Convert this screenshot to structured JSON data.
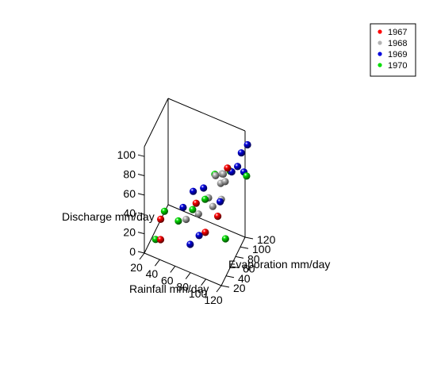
{
  "chart_data": {
    "type": "scatter3d",
    "xlabel": "Rainfall mm/day",
    "ylabel": "Evaporation mm/day",
    "zlabel": "Discharge mm/day",
    "x_ticks": [
      "20",
      "40",
      "60",
      "80",
      "100",
      "120"
    ],
    "y_ticks": [
      "20",
      "40",
      "60",
      "80",
      "100",
      "120"
    ],
    "z_ticks": [
      "0",
      "20",
      "40",
      "60",
      "80",
      "100"
    ],
    "xlim": [
      20,
      120
    ],
    "ylim": [
      20,
      120
    ],
    "zlim": [
      0,
      110
    ],
    "legend_position": "top-right",
    "series": [
      {
        "name": "1967",
        "color": "#ff0000",
        "points": [
          {
            "x": 38,
            "y": 30,
            "z": 15
          },
          {
            "x": 35,
            "y": 40,
            "z": 30
          },
          {
            "x": 90,
            "y": 50,
            "z": 30
          },
          {
            "x": 100,
            "y": 70,
            "z": 40
          },
          {
            "x": 75,
            "y": 60,
            "z": 50
          },
          {
            "x": 108,
            "y": 85,
            "z": 85
          }
        ]
      },
      {
        "name": "1968",
        "color": "#b3b3b3",
        "points": [
          {
            "x": 65,
            "y": 50,
            "z": 35
          },
          {
            "x": 78,
            "y": 60,
            "z": 40
          },
          {
            "x": 92,
            "y": 75,
            "z": 45
          },
          {
            "x": 100,
            "y": 85,
            "z": 50
          },
          {
            "x": 88,
            "y": 70,
            "z": 55
          },
          {
            "x": 94,
            "y": 80,
            "z": 75
          },
          {
            "x": 104,
            "y": 80,
            "z": 80
          },
          {
            "x": 100,
            "y": 88,
            "z": 75
          },
          {
            "x": 105,
            "y": 85,
            "z": 70
          },
          {
            "x": 97,
            "y": 92,
            "z": 62
          }
        ]
      },
      {
        "name": "1969",
        "color": "#0000dd",
        "points": [
          {
            "x": 75,
            "y": 35,
            "z": 20
          },
          {
            "x": 85,
            "y": 40,
            "z": 30
          },
          {
            "x": 58,
            "y": 60,
            "z": 40
          },
          {
            "x": 68,
            "y": 70,
            "z": 55
          },
          {
            "x": 80,
            "y": 75,
            "z": 60
          },
          {
            "x": 100,
            "y": 80,
            "z": 50
          },
          {
            "x": 112,
            "y": 90,
            "z": 80
          },
          {
            "x": 118,
            "y": 95,
            "z": 85
          },
          {
            "x": 120,
            "y": 115,
            "z": 70
          },
          {
            "x": 125,
            "y": 88,
            "z": 105
          },
          {
            "x": 130,
            "y": 98,
            "z": 110
          }
        ]
      },
      {
        "name": "1970",
        "color": "#00dd00",
        "points": [
          {
            "x": 30,
            "y": 35,
            "z": 10
          },
          {
            "x": 40,
            "y": 40,
            "z": 40
          },
          {
            "x": 55,
            "y": 50,
            "z": 30
          },
          {
            "x": 72,
            "y": 55,
            "z": 45
          },
          {
            "x": 85,
            "y": 65,
            "z": 55
          },
          {
            "x": 90,
            "y": 90,
            "z": 70
          },
          {
            "x": 110,
            "y": 70,
            "z": 20
          },
          {
            "x": 125,
            "y": 110,
            "z": 70
          },
          {
            "x": 110,
            "y": 90,
            "z": 80
          }
        ]
      }
    ]
  }
}
